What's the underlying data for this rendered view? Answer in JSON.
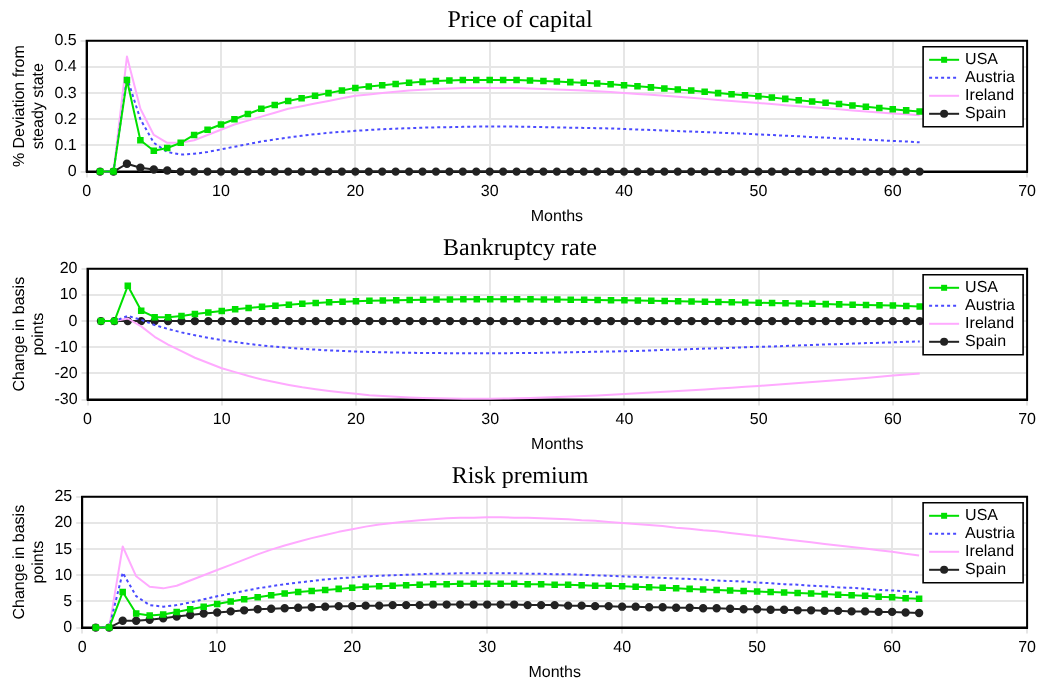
{
  "chart_data": [
    {
      "type": "line",
      "title": "Price of capital",
      "xlabel": "Months",
      "ylabel": "% Deviation from steady state",
      "x": [
        1,
        2,
        3,
        4,
        5,
        6,
        7,
        8,
        9,
        10,
        11,
        12,
        13,
        14,
        15,
        16,
        17,
        18,
        19,
        20,
        21,
        22,
        23,
        24,
        25,
        26,
        27,
        28,
        29,
        30,
        31,
        32,
        33,
        34,
        35,
        36,
        37,
        38,
        39,
        40,
        41,
        42,
        43,
        44,
        45,
        46,
        47,
        48,
        49,
        50,
        51,
        52,
        53,
        54,
        55,
        56,
        57,
        58,
        59,
        60,
        61,
        62
      ],
      "xlim": [
        0,
        70
      ],
      "xticks": [
        0,
        10,
        20,
        30,
        40,
        50,
        60,
        70
      ],
      "ylim": [
        0,
        0.5
      ],
      "yticks": [
        0,
        0.1,
        0.2,
        0.3,
        0.4,
        0.5
      ],
      "grid": true,
      "legend": "top right",
      "series": [
        {
          "name": "USA",
          "color": "#00e000",
          "marker": "square",
          "line_style": "solid",
          "values": [
            0,
            0,
            0.35,
            0.12,
            0.08,
            0.09,
            0.11,
            0.14,
            0.16,
            0.18,
            0.2,
            0.22,
            0.24,
            0.255,
            0.27,
            0.28,
            0.29,
            0.3,
            0.31,
            0.32,
            0.325,
            0.33,
            0.335,
            0.34,
            0.343,
            0.346,
            0.348,
            0.35,
            0.35,
            0.35,
            0.35,
            0.35,
            0.348,
            0.346,
            0.344,
            0.342,
            0.34,
            0.337,
            0.334,
            0.33,
            0.326,
            0.322,
            0.318,
            0.314,
            0.31,
            0.305,
            0.3,
            0.296,
            0.292,
            0.288,
            0.283,
            0.278,
            0.273,
            0.268,
            0.263,
            0.258,
            0.253,
            0.248,
            0.243,
            0.238,
            0.234,
            0.23
          ]
        },
        {
          "name": "Austria",
          "color": "#4a4aff",
          "marker": "none",
          "line_style": "dotted",
          "values": [
            0,
            0,
            0.36,
            0.2,
            0.11,
            0.075,
            0.065,
            0.068,
            0.075,
            0.085,
            0.095,
            0.105,
            0.115,
            0.123,
            0.13,
            0.137,
            0.143,
            0.148,
            0.152,
            0.156,
            0.159,
            0.162,
            0.164,
            0.166,
            0.168,
            0.169,
            0.17,
            0.171,
            0.172,
            0.172,
            0.172,
            0.172,
            0.171,
            0.17,
            0.169,
            0.168,
            0.167,
            0.166,
            0.165,
            0.163,
            0.161,
            0.159,
            0.157,
            0.155,
            0.153,
            0.151,
            0.149,
            0.147,
            0.145,
            0.142,
            0.14,
            0.137,
            0.135,
            0.132,
            0.13,
            0.127,
            0.125,
            0.122,
            0.12,
            0.117,
            0.115,
            0.112
          ]
        },
        {
          "name": "Ireland",
          "color": "#ffaaff",
          "marker": "none",
          "line_style": "solid",
          "values": [
            0,
            0,
            0.44,
            0.24,
            0.14,
            0.11,
            0.11,
            0.12,
            0.14,
            0.16,
            0.18,
            0.195,
            0.21,
            0.225,
            0.24,
            0.25,
            0.26,
            0.27,
            0.28,
            0.29,
            0.295,
            0.3,
            0.305,
            0.31,
            0.313,
            0.316,
            0.318,
            0.32,
            0.32,
            0.32,
            0.32,
            0.32,
            0.318,
            0.316,
            0.314,
            0.312,
            0.31,
            0.307,
            0.304,
            0.3,
            0.297,
            0.294,
            0.29,
            0.286,
            0.282,
            0.278,
            0.274,
            0.27,
            0.266,
            0.262,
            0.258,
            0.254,
            0.25,
            0.246,
            0.242,
            0.238,
            0.234,
            0.23,
            0.226,
            0.222,
            0.219,
            0.215
          ]
        },
        {
          "name": "Spain",
          "color": "#222222",
          "marker": "circle",
          "line_style": "solid",
          "values": [
            0,
            0,
            0.03,
            0.015,
            0.008,
            0.004,
            0,
            0,
            0,
            0,
            0,
            0,
            0,
            0,
            0,
            0,
            0,
            0,
            0,
            0,
            0,
            0,
            0,
            0,
            0,
            0,
            0,
            0,
            0,
            0,
            0,
            0,
            0,
            0,
            0,
            0,
            0,
            0,
            0,
            0,
            0,
            0,
            0,
            0,
            0,
            0,
            0,
            0,
            0,
            0,
            0,
            0,
            0,
            0,
            0,
            0,
            0,
            0,
            0,
            0,
            0,
            0
          ]
        }
      ]
    },
    {
      "type": "line",
      "title": "Bankruptcy rate",
      "xlabel": "Months",
      "ylabel": "Change in basis points",
      "x": [
        1,
        2,
        3,
        4,
        5,
        6,
        7,
        8,
        9,
        10,
        11,
        12,
        13,
        14,
        15,
        16,
        17,
        18,
        19,
        20,
        21,
        22,
        23,
        24,
        25,
        26,
        27,
        28,
        29,
        30,
        31,
        32,
        33,
        34,
        35,
        36,
        37,
        38,
        39,
        40,
        41,
        42,
        43,
        44,
        45,
        46,
        47,
        48,
        49,
        50,
        51,
        52,
        53,
        54,
        55,
        56,
        57,
        58,
        59,
        60,
        61,
        62
      ],
      "xlim": [
        0,
        70
      ],
      "xticks": [
        0,
        10,
        20,
        30,
        40,
        50,
        60,
        70
      ],
      "ylim": [
        -30,
        20
      ],
      "yticks": [
        -30,
        -20,
        -10,
        0,
        10,
        20
      ],
      "grid": true,
      "legend": "top right",
      "series": [
        {
          "name": "USA",
          "color": "#00e000",
          "marker": "square",
          "line_style": "solid",
          "values": [
            0,
            0,
            13.5,
            4,
            1.5,
            1.5,
            2,
            2.7,
            3.3,
            3.9,
            4.5,
            5,
            5.5,
            5.9,
            6.3,
            6.6,
            6.9,
            7.2,
            7.4,
            7.6,
            7.8,
            7.9,
            8,
            8.1,
            8.2,
            8.3,
            8.3,
            8.4,
            8.4,
            8.4,
            8.4,
            8.4,
            8.4,
            8.3,
            8.3,
            8.2,
            8.2,
            8.1,
            8,
            8,
            7.9,
            7.8,
            7.7,
            7.6,
            7.5,
            7.4,
            7.3,
            7.2,
            7.1,
            7,
            6.9,
            6.8,
            6.7,
            6.6,
            6.5,
            6.4,
            6.3,
            6.2,
            6.1,
            6,
            5.8,
            5.6
          ]
        },
        {
          "name": "Austria",
          "color": "#4a4aff",
          "marker": "none",
          "line_style": "dotted",
          "values": [
            0,
            0,
            2,
            0.5,
            -1.5,
            -3,
            -4.3,
            -5.4,
            -6.4,
            -7.3,
            -8,
            -8.7,
            -9.3,
            -9.8,
            -10.2,
            -10.6,
            -10.9,
            -11.2,
            -11.4,
            -11.6,
            -11.8,
            -11.9,
            -12,
            -12.1,
            -12.2,
            -12.2,
            -12.3,
            -12.3,
            -12.3,
            -12.3,
            -12.3,
            -12.2,
            -12.2,
            -12.1,
            -12,
            -11.9,
            -11.8,
            -11.7,
            -11.6,
            -11.5,
            -11.4,
            -11.2,
            -11,
            -10.9,
            -10.7,
            -10.5,
            -10.4,
            -10.2,
            -10,
            -9.8,
            -9.7,
            -9.5,
            -9.3,
            -9.1,
            -8.9,
            -8.8,
            -8.6,
            -8.4,
            -8.3,
            -8.1,
            -7.9,
            -7.8
          ]
        },
        {
          "name": "Ireland",
          "color": "#ffaaff",
          "marker": "none",
          "line_style": "solid",
          "values": [
            0,
            0,
            1,
            -2,
            -6,
            -9,
            -11.5,
            -14,
            -16,
            -18,
            -19.5,
            -21,
            -22.3,
            -23.4,
            -24.4,
            -25.3,
            -26,
            -26.7,
            -27.3,
            -27.8,
            -28.3,
            -28.6,
            -28.9,
            -29.2,
            -29.4,
            -29.5,
            -29.6,
            -29.7,
            -29.7,
            -29.7,
            -29.6,
            -29.5,
            -29.4,
            -29.2,
            -29,
            -28.8,
            -28.6,
            -28.4,
            -28.1,
            -27.9,
            -27.6,
            -27.3,
            -27,
            -26.7,
            -26.4,
            -26.1,
            -25.8,
            -25.5,
            -25.1,
            -24.8,
            -24.4,
            -24,
            -23.7,
            -23.3,
            -22.9,
            -22.5,
            -22.1,
            -21.7,
            -21.3,
            -20.8,
            -20.4,
            -20
          ]
        },
        {
          "name": "Spain",
          "color": "#222222",
          "marker": "circle",
          "line_style": "solid",
          "values": [
            0,
            0,
            0,
            0,
            0,
            0,
            0,
            0,
            0,
            0,
            0,
            0,
            0,
            0,
            0,
            0,
            0,
            0,
            0,
            0,
            0,
            0,
            0,
            0,
            0,
            0,
            0,
            0,
            0,
            0,
            0,
            0,
            0,
            0,
            0,
            0,
            0,
            0,
            0,
            0,
            0,
            0,
            0,
            0,
            0,
            0,
            0,
            0,
            0,
            0,
            0,
            0,
            0,
            0,
            0,
            0,
            0,
            0,
            0,
            0,
            0,
            0
          ]
        }
      ]
    },
    {
      "type": "line",
      "title": "Risk premium",
      "xlabel": "Months",
      "ylabel": "Change in basis points",
      "x": [
        1,
        2,
        3,
        4,
        5,
        6,
        7,
        8,
        9,
        10,
        11,
        12,
        13,
        14,
        15,
        16,
        17,
        18,
        19,
        20,
        21,
        22,
        23,
        24,
        25,
        26,
        27,
        28,
        29,
        30,
        31,
        32,
        33,
        34,
        35,
        36,
        37,
        38,
        39,
        40,
        41,
        42,
        43,
        44,
        45,
        46,
        47,
        48,
        49,
        50,
        51,
        52,
        53,
        54,
        55,
        56,
        57,
        58,
        59,
        60,
        61,
        62
      ],
      "xlim": [
        0,
        70
      ],
      "xticks": [
        0,
        10,
        20,
        30,
        40,
        50,
        60,
        70
      ],
      "ylim": [
        0,
        25
      ],
      "yticks": [
        0,
        5,
        10,
        15,
        20,
        25
      ],
      "grid": true,
      "legend": "top right",
      "series": [
        {
          "name": "USA",
          "color": "#00e000",
          "marker": "square",
          "line_style": "solid",
          "values": [
            0,
            0,
            6.8,
            2.7,
            2.3,
            2.5,
            3,
            3.5,
            4,
            4.5,
            5,
            5.4,
            5.8,
            6.2,
            6.5,
            6.8,
            7,
            7.2,
            7.4,
            7.6,
            7.8,
            7.9,
            8,
            8.1,
            8.2,
            8.3,
            8.3,
            8.4,
            8.4,
            8.4,
            8.4,
            8.4,
            8.3,
            8.3,
            8.2,
            8.2,
            8.1,
            8,
            8,
            7.9,
            7.8,
            7.7,
            7.6,
            7.5,
            7.4,
            7.3,
            7.2,
            7.1,
            7,
            6.9,
            6.8,
            6.7,
            6.6,
            6.5,
            6.4,
            6.3,
            6.2,
            6.1,
            5.9,
            5.8,
            5.6,
            5.5
          ]
        },
        {
          "name": "Austria",
          "color": "#4a4aff",
          "marker": "none",
          "line_style": "dotted",
          "values": [
            0,
            0,
            10.5,
            6,
            4.3,
            4,
            4.3,
            4.8,
            5.4,
            6,
            6.5,
            7,
            7.5,
            7.9,
            8.3,
            8.6,
            8.9,
            9.2,
            9.4,
            9.6,
            9.8,
            9.9,
            10,
            10.1,
            10.2,
            10.3,
            10.3,
            10.4,
            10.4,
            10.4,
            10.4,
            10.4,
            10.3,
            10.3,
            10.2,
            10.2,
            10.1,
            10,
            9.9,
            9.8,
            9.7,
            9.6,
            9.5,
            9.4,
            9.3,
            9.2,
            9,
            8.9,
            8.8,
            8.6,
            8.5,
            8.3,
            8.2,
            8,
            7.9,
            7.7,
            7.6,
            7.4,
            7.2,
            7.1,
            6.9,
            6.7
          ]
        },
        {
          "name": "Ireland",
          "color": "#ffaaff",
          "marker": "none",
          "line_style": "solid",
          "values": [
            0,
            0,
            15.5,
            9.8,
            7.8,
            7.5,
            8,
            9,
            10,
            11,
            12,
            13,
            14,
            14.9,
            15.7,
            16.4,
            17.1,
            17.7,
            18.3,
            18.8,
            19.3,
            19.7,
            20,
            20.3,
            20.5,
            20.7,
            20.9,
            21,
            21,
            21.1,
            21.1,
            21,
            21,
            20.9,
            20.8,
            20.7,
            20.5,
            20.4,
            20.2,
            20,
            19.8,
            19.6,
            19.4,
            19.1,
            18.9,
            18.6,
            18.4,
            18.1,
            17.8,
            17.5,
            17.2,
            16.9,
            16.6,
            16.3,
            16,
            15.7,
            15.4,
            15.1,
            14.8,
            14.5,
            14.1,
            13.8
          ]
        },
        {
          "name": "Spain",
          "color": "#222222",
          "marker": "circle",
          "line_style": "solid",
          "values": [
            0,
            0,
            1.3,
            1.3,
            1.5,
            1.8,
            2.1,
            2.4,
            2.7,
            2.9,
            3.1,
            3.3,
            3.5,
            3.6,
            3.7,
            3.8,
            3.9,
            4,
            4.1,
            4.1,
            4.2,
            4.2,
            4.3,
            4.3,
            4.3,
            4.4,
            4.4,
            4.4,
            4.4,
            4.4,
            4.4,
            4.4,
            4.3,
            4.3,
            4.3,
            4.2,
            4.2,
            4.1,
            4.1,
            4,
            4,
            3.9,
            3.9,
            3.8,
            3.8,
            3.7,
            3.7,
            3.6,
            3.5,
            3.5,
            3.4,
            3.4,
            3.3,
            3.3,
            3.2,
            3.2,
            3.1,
            3.1,
            3,
            3,
            2.9,
            2.8
          ]
        }
      ]
    }
  ]
}
